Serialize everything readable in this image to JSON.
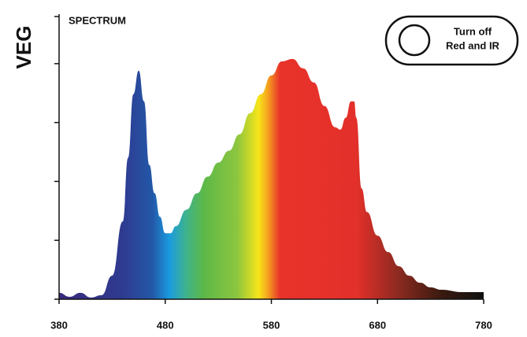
{
  "mode_label": "VEG",
  "button": {
    "lines": [
      "Turn off",
      "Red and IR"
    ]
  },
  "chart_data": {
    "type": "area",
    "title": "SPECTRUM",
    "x": [
      380,
      390,
      400,
      410,
      420,
      430,
      440,
      445,
      450,
      455,
      460,
      465,
      470,
      475,
      480,
      485,
      490,
      500,
      510,
      520,
      530,
      540,
      550,
      560,
      570,
      580,
      590,
      600,
      610,
      620,
      630,
      640,
      645,
      650,
      655,
      658,
      660,
      665,
      670,
      680,
      690,
      700,
      710,
      720,
      730,
      740,
      760,
      780
    ],
    "values": [
      2.7,
      1,
      2.7,
      0.7,
      1.7,
      10,
      33,
      60,
      87,
      97,
      84,
      57,
      45,
      35,
      28,
      28,
      31,
      38,
      45,
      52,
      58,
      63,
      70,
      79,
      87,
      95,
      101,
      102,
      98,
      92,
      82,
      73,
      72,
      77,
      84,
      84,
      77,
      47,
      37,
      27,
      20,
      14,
      10,
      7,
      5,
      4,
      3,
      3
    ],
    "xlim": [
      380,
      780
    ],
    "xticks": [
      380,
      480,
      580,
      680,
      780
    ],
    "ylim": [
      0,
      120
    ],
    "yticks": [
      0,
      25,
      50,
      75,
      100,
      120
    ]
  }
}
